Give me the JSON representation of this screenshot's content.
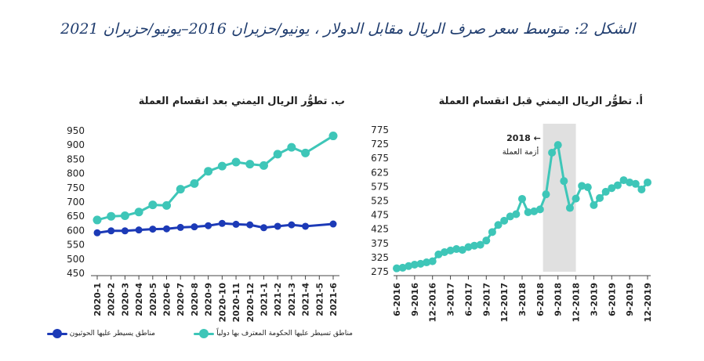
{
  "figure_title": "الشكل 2: متوسط سعر صرف الريال مقابل الدولار ، يونيو/حزيران 2016–يونيو/حزيران 2021",
  "chart_data": [
    {
      "id": "a",
      "type": "line",
      "title": "أ. تطوُّر الريال اليمني قبل انقسام العملة",
      "x": [
        "6-2016",
        "7-2016",
        "8-2016",
        "9-2016",
        "10-2016",
        "11-2016",
        "12-2016",
        "1-2017",
        "2-2017",
        "3-2017",
        "4-2017",
        "5-2017",
        "6-2017",
        "7-2017",
        "8-2017",
        "9-2017",
        "10-2017",
        "11-2017",
        "12-2017",
        "1-2018",
        "2-2018",
        "3-2018",
        "4-2018",
        "5-2018",
        "6-2018",
        "7-2018",
        "8-2018",
        "9-2018",
        "10-2018",
        "11-2018",
        "12-2018",
        "1-2019",
        "2-2019",
        "3-2019",
        "4-2019",
        "5-2019",
        "6-2019",
        "7-2019",
        "8-2019",
        "9-2019",
        "10-2019",
        "11-2019",
        "12-2019"
      ],
      "x_tick_labels": [
        "6-2016",
        "9-2016",
        "12-2016",
        "3-2017",
        "6-2017",
        "9-2017",
        "12-2017",
        "3-2018",
        "6-2018",
        "9-2018",
        "12-2018",
        "3-2019",
        "6-2019",
        "9-2019",
        "12-2019"
      ],
      "values": [
        287,
        289,
        295,
        300,
        303,
        308,
        312,
        336,
        344,
        350,
        355,
        352,
        362,
        367,
        370,
        385,
        415,
        440,
        455,
        470,
        478,
        532,
        485,
        488,
        495,
        548,
        695,
        722,
        595,
        500,
        533,
        578,
        573,
        510,
        535,
        557,
        570,
        580,
        598,
        590,
        585,
        565,
        590
      ],
      "ylim": [
        275,
        775
      ],
      "yticks": [
        275,
        325,
        375,
        425,
        475,
        525,
        575,
        625,
        675,
        725,
        775
      ],
      "grid": false,
      "color": "#3ec6b8",
      "highlight": {
        "from": "7-2018",
        "to": "12-2018",
        "color": "#e0e0e0"
      },
      "annotation": {
        "line1": "2018 ←",
        "line2": "أزمة العملة"
      }
    },
    {
      "id": "b",
      "type": "line",
      "title": "ب. تطوُّر الريال اليمني بعد انقسام العملة",
      "categories": [
        "2020-1",
        "2020-2",
        "2020-3",
        "2020-4",
        "2020-5",
        "2020-6",
        "2020-7",
        "2020-8",
        "2020-9",
        "2020-10",
        "2020-11",
        "2020-12",
        "2021-1",
        "2021-2",
        "2021-3",
        "2021-4",
        "2021-5",
        "2021-6"
      ],
      "ylim": [
        450,
        950
      ],
      "yticks": [
        450,
        500,
        550,
        600,
        650,
        700,
        750,
        800,
        850,
        900,
        950
      ],
      "grid": false,
      "series": [
        {
          "name": "مناطق تسيطر عليها الحكومة المعترف بها دولياً",
          "color": "#3ec6b8",
          "values": [
            637,
            650,
            652,
            665,
            690,
            688,
            745,
            765,
            808,
            826,
            840,
            833,
            828,
            868,
            892,
            872,
            null,
            932
          ]
        },
        {
          "name": "مناطق يسيطر عليها الحوثيون",
          "color": "#1c3ab7",
          "values": [
            592,
            599,
            599,
            602,
            605,
            606,
            611,
            613,
            617,
            625,
            622,
            620,
            610,
            615,
            620,
            615,
            null,
            623
          ]
        }
      ]
    }
  ]
}
